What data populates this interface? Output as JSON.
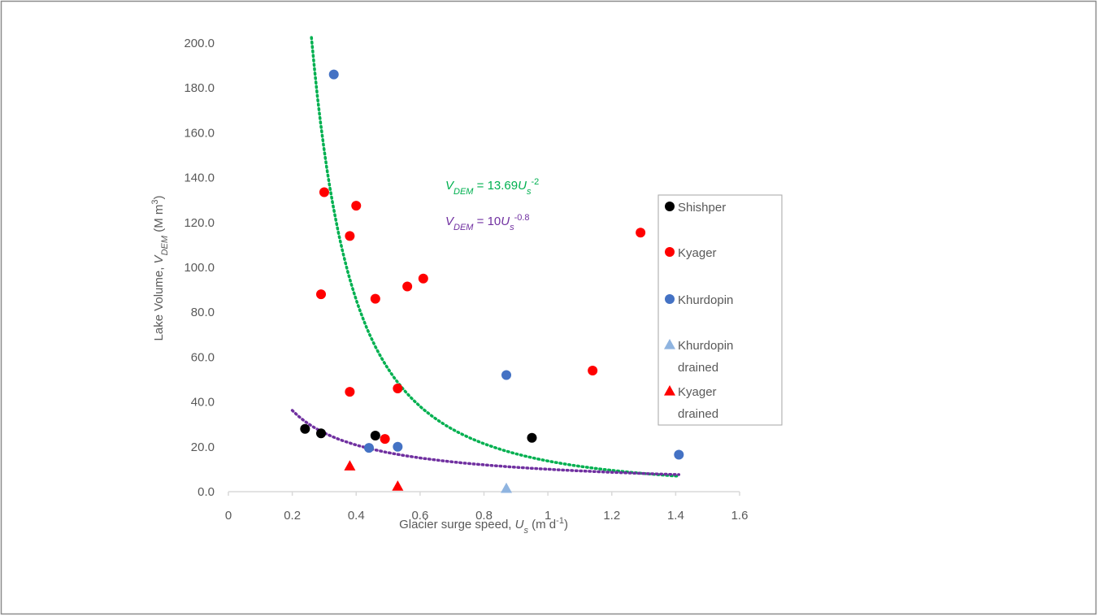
{
  "chart_data": {
    "type": "scatter",
    "x_label": {
      "parts": [
        "Glacier surge speed, ",
        "U",
        "s",
        " (m d",
        "-1",
        ")"
      ]
    },
    "y_label": {
      "parts": [
        "Lake Volume, ",
        "V",
        "DEM",
        " (M m",
        "3",
        ")"
      ]
    },
    "xlim": [
      0,
      1.6
    ],
    "xticks": [
      0,
      0.2,
      0.4,
      0.6,
      0.8,
      1,
      1.2,
      1.4,
      1.6
    ],
    "ylim": [
      0,
      200
    ],
    "yticks": [
      {
        "value": 0,
        "label": "0.0"
      },
      {
        "value": 20,
        "label": "20.0"
      },
      {
        "value": 40,
        "label": "40.0"
      },
      {
        "value": 60,
        "label": "60.0"
      },
      {
        "value": 80,
        "label": "80.0"
      },
      {
        "value": 100,
        "label": "100.0"
      },
      {
        "value": 120,
        "label": "120.0"
      },
      {
        "value": 140,
        "label": "140.0"
      },
      {
        "value": 160,
        "label": "160.0"
      },
      {
        "value": 180,
        "label": "180.0"
      },
      {
        "value": 200,
        "label": "200.0"
      }
    ],
    "series": [
      {
        "name": "Shishper",
        "color": "#000000",
        "marker": "circle",
        "x": [
          0.24,
          0.29,
          0.46,
          0.95
        ],
        "y": [
          28,
          26,
          25,
          24
        ]
      },
      {
        "name": "Kyager",
        "color": "#ff0000",
        "marker": "circle",
        "x": [
          0.29,
          0.3,
          0.38,
          0.4,
          0.38,
          0.46,
          0.53,
          0.49,
          0.56,
          0.61,
          1.14,
          1.29
        ],
        "y": [
          88,
          133.5,
          114,
          127.5,
          44.5,
          86,
          46,
          23.5,
          91.5,
          95,
          54,
          115.5
        ]
      },
      {
        "name": "Khurdopin",
        "color": "#4472c4",
        "marker": "circle",
        "x": [
          0.33,
          0.44,
          0.53,
          0.87,
          1.41
        ],
        "y": [
          186,
          19.5,
          20,
          52,
          16.5
        ]
      },
      {
        "name": "Khurdopin drained",
        "color": "#8fb4e0",
        "marker": "triangle",
        "x": [
          0.87
        ],
        "y": [
          1.5
        ]
      },
      {
        "name": "Kyager drained",
        "color": "#ff0000",
        "marker": "triangle",
        "x": [
          0.38,
          0.53
        ],
        "y": [
          11.5,
          2.5
        ]
      }
    ],
    "trendlines": [
      {
        "color": "#00b050",
        "a": 13.69,
        "b": -2,
        "xrange": [
          0.26,
          1.41
        ],
        "equation": {
          "parts": [
            "V",
            "DEM",
            " = 13.69",
            "U",
            "s",
            "-2"
          ]
        }
      },
      {
        "color": "#7030a0",
        "a": 10,
        "b": -0.8,
        "xrange": [
          0.2,
          1.41
        ],
        "equation": {
          "parts": [
            "V",
            "DEM",
            " = 10",
            "U",
            "s",
            "-0.8"
          ]
        }
      }
    ]
  }
}
